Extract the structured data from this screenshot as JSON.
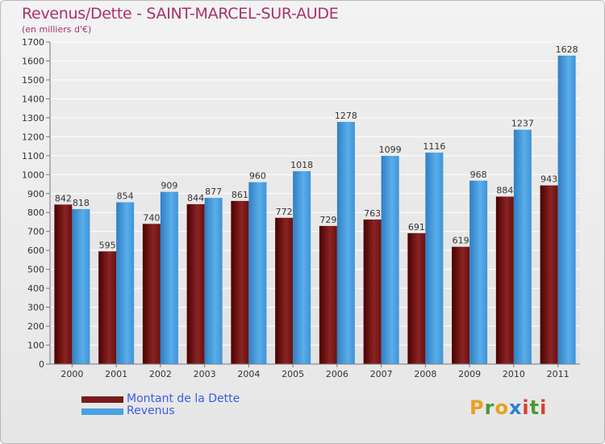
{
  "title": "Revenus/Dette - SAINT-MARCEL-SUR-AUDE",
  "subtitle": "(en milliers d'€)",
  "logo": {
    "text": "Proxiti",
    "letters": [
      "P",
      "r",
      "o",
      "x",
      "i",
      "t",
      "i"
    ],
    "colors": [
      "#e8a020",
      "#4a9a30",
      "#e8a020",
      "#2e7fcf",
      "#d8402a",
      "#4a9a30",
      "#d8402a"
    ]
  },
  "colors": {
    "debt": "#7a1a1a",
    "revenue": "#4aa0e2",
    "title": "#a8326a",
    "legend_text": "#3d5ce0"
  },
  "chart_data": {
    "type": "bar",
    "title": "Revenus/Dette - SAINT-MARCEL-SUR-AUDE",
    "ylabel": "(en milliers d'€)",
    "xlabel": "",
    "categories": [
      "2000",
      "2001",
      "2002",
      "2003",
      "2004",
      "2005",
      "2006",
      "2007",
      "2008",
      "2009",
      "2010",
      "2011"
    ],
    "series": [
      {
        "name": "Montant de la Dette",
        "values": [
          842,
          595,
          740,
          844,
          861,
          772,
          729,
          763,
          691,
          619,
          884,
          943
        ]
      },
      {
        "name": "Revenus",
        "values": [
          818,
          854,
          909,
          877,
          960,
          1018,
          1278,
          1099,
          1116,
          968,
          1237,
          1628
        ]
      }
    ],
    "ylim": [
      0,
      1700
    ],
    "yticks": [
      0,
      100,
      200,
      300,
      400,
      500,
      600,
      700,
      800,
      900,
      1000,
      1100,
      1200,
      1300,
      1400,
      1500,
      1600,
      1700
    ],
    "grid": true,
    "legend": "bottom-left"
  }
}
